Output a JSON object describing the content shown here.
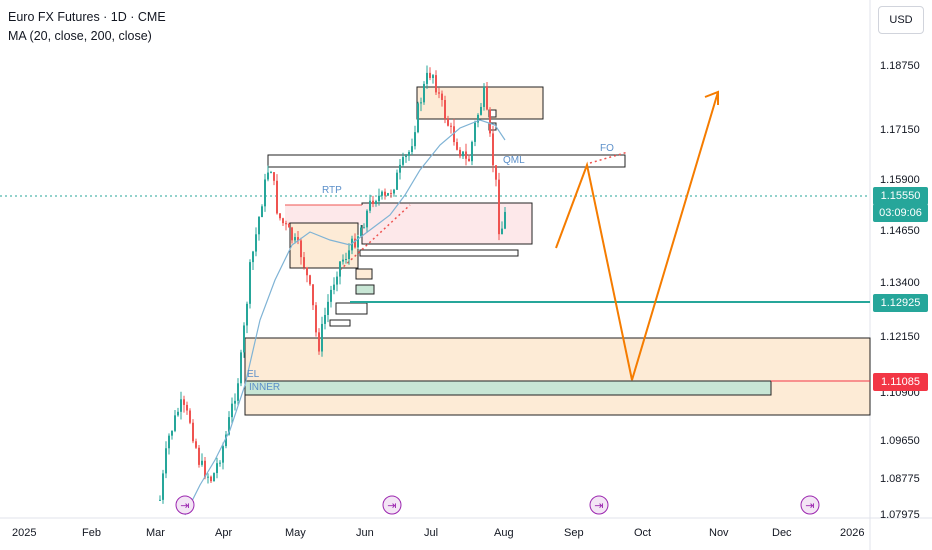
{
  "header": {
    "title": "Euro FX Futures · 1D · CME",
    "indicator": "MA (20, close, 200, close)"
  },
  "currency_button": "USD",
  "price_axis": {
    "ticks": [
      "1.18750",
      "1.17150",
      "1.15900",
      "1.14650",
      "1.13400",
      "1.12150",
      "1.10900",
      "1.09650",
      "1.08775",
      "1.07975"
    ],
    "current_price": "1.15550",
    "countdown": "03:09:06",
    "level_green": "1.12925",
    "level_red": "1.11085"
  },
  "time_axis": [
    "2025",
    "Feb",
    "Mar",
    "Apr",
    "May",
    "Jun",
    "Jul",
    "Aug",
    "Sep",
    "Oct",
    "Nov",
    "Dec",
    "2026"
  ],
  "annotations": {
    "rtp": "RTP",
    "qml": "QML",
    "fo": "FO",
    "el": "EL",
    "inner": "INNER"
  },
  "colors": {
    "up": "#26a69a",
    "down": "#ef5350",
    "projection": "#f57c00",
    "ma": "#7fb3d5",
    "zone_fill": "#fdebd6",
    "inner_fill": "#c8e6d5",
    "price_bg": "#26a69a",
    "red_level": "#f23645"
  },
  "chart_data": {
    "type": "candlestick",
    "symbol": "Euro FX Futures",
    "timeframe": "1D",
    "x_range": [
      "2025-01",
      "2026-01"
    ],
    "y_range": [
      1.0775,
      1.2
    ],
    "price_levels": [
      1.12925,
      1.11085
    ],
    "last_price": 1.1555,
    "projection_path": [
      {
        "x": "2025-08-20",
        "y": 1.145
      },
      {
        "x": "2025-09-08",
        "y": 1.16
      },
      {
        "x": "2025-09-26",
        "y": 1.11
      },
      {
        "x": "2025-11-01",
        "y": 1.183
      }
    ]
  }
}
